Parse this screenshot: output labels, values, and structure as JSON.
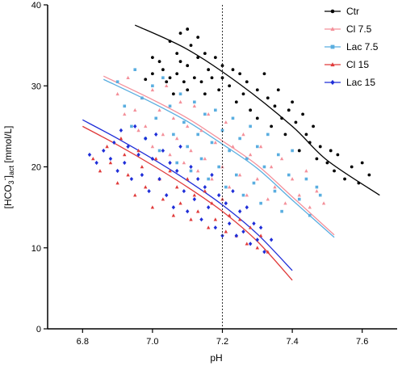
{
  "chart_data": {
    "type": "scatter",
    "xlabel": "pH",
    "ylabel": {
      "prefix": "[HCO",
      "sub1": "3",
      "sup": "-",
      "mid": "]",
      "sub2": "act",
      "suffix": " [mmol/L]"
    },
    "xlim": [
      6.7,
      7.7
    ],
    "ylim": [
      0,
      40
    ],
    "xticks": [
      "6.8",
      "7.0",
      "7.2",
      "7.4",
      "7.6"
    ],
    "yticks": [
      "0",
      "10",
      "20",
      "30",
      "40"
    ],
    "vline_x": 7.2,
    "grid": false,
    "legend_position": "top-right",
    "series": [
      {
        "name": "Ctr",
        "color": "#000000",
        "marker": "circle",
        "fit": {
          "x": [
            6.95,
            7.1,
            7.25,
            7.4,
            7.5,
            7.65
          ],
          "y": [
            37.5,
            34.5,
            30.2,
            25.0,
            20.8,
            16.5
          ]
        },
        "points": [
          [
            6.98,
            30.8
          ],
          [
            7.0,
            33.5
          ],
          [
            7.0,
            31.5
          ],
          [
            7.02,
            33.0
          ],
          [
            7.03,
            32.0
          ],
          [
            7.04,
            30.5
          ],
          [
            7.05,
            35.5
          ],
          [
            7.05,
            31.0
          ],
          [
            7.06,
            29.0
          ],
          [
            7.07,
            34.0
          ],
          [
            7.07,
            31.5
          ],
          [
            7.08,
            36.5
          ],
          [
            7.08,
            33.0
          ],
          [
            7.09,
            30.5
          ],
          [
            7.1,
            37.0
          ],
          [
            7.1,
            32.5
          ],
          [
            7.1,
            29.5
          ],
          [
            7.11,
            35.0
          ],
          [
            7.12,
            31.0
          ],
          [
            7.13,
            36.0
          ],
          [
            7.13,
            33.5
          ],
          [
            7.14,
            30.5
          ],
          [
            7.15,
            34.0
          ],
          [
            7.15,
            29.0
          ],
          [
            7.16,
            32.0
          ],
          [
            7.17,
            31.0
          ],
          [
            7.18,
            33.5
          ],
          [
            7.19,
            29.5
          ],
          [
            7.2,
            32.5
          ],
          [
            7.2,
            31.0
          ],
          [
            7.22,
            30.0
          ],
          [
            7.23,
            32.0
          ],
          [
            7.24,
            28.0
          ],
          [
            7.25,
            31.5
          ],
          [
            7.26,
            29.0
          ],
          [
            7.27,
            30.5
          ],
          [
            7.28,
            27.0
          ],
          [
            7.3,
            29.5
          ],
          [
            7.3,
            26.0
          ],
          [
            7.32,
            31.5
          ],
          [
            7.33,
            28.5
          ],
          [
            7.34,
            25.0
          ],
          [
            7.35,
            27.5
          ],
          [
            7.36,
            29.5
          ],
          [
            7.37,
            26.0
          ],
          [
            7.38,
            24.0
          ],
          [
            7.39,
            27.0
          ],
          [
            7.4,
            28.0
          ],
          [
            7.41,
            25.5
          ],
          [
            7.42,
            22.0
          ],
          [
            7.43,
            26.5
          ],
          [
            7.44,
            24.0
          ],
          [
            7.45,
            23.0
          ],
          [
            7.46,
            25.0
          ],
          [
            7.47,
            21.0
          ],
          [
            7.48,
            22.5
          ],
          [
            7.5,
            20.5
          ],
          [
            7.51,
            22.0
          ],
          [
            7.52,
            19.5
          ],
          [
            7.53,
            21.5
          ],
          [
            7.55,
            18.5
          ],
          [
            7.57,
            20.0
          ],
          [
            7.59,
            18.0
          ],
          [
            7.6,
            20.5
          ],
          [
            7.62,
            19.0
          ]
        ]
      },
      {
        "name": "Cl 7.5",
        "color": "#f4909a",
        "marker": "triangle",
        "fit": {
          "x": [
            6.86,
            7.0,
            7.1,
            7.2,
            7.3,
            7.4,
            7.52
          ],
          "y": [
            31.2,
            28.3,
            26.0,
            23.2,
            20.2,
            16.3,
            11.6
          ]
        },
        "points": [
          [
            6.9,
            29.0
          ],
          [
            6.92,
            26.5
          ],
          [
            6.93,
            31.0
          ],
          [
            6.95,
            27.0
          ],
          [
            6.96,
            24.5
          ],
          [
            6.97,
            28.5
          ],
          [
            6.98,
            25.0
          ],
          [
            7.0,
            29.5
          ],
          [
            7.0,
            22.5
          ],
          [
            7.02,
            27.0
          ],
          [
            7.03,
            24.0
          ],
          [
            7.04,
            30.0
          ],
          [
            7.05,
            21.5
          ],
          [
            7.06,
            26.0
          ],
          [
            7.07,
            23.5
          ],
          [
            7.08,
            28.0
          ],
          [
            7.09,
            20.5
          ],
          [
            7.1,
            25.0
          ],
          [
            7.11,
            22.0
          ],
          [
            7.12,
            27.5
          ],
          [
            7.13,
            19.5
          ],
          [
            7.14,
            24.5
          ],
          [
            7.15,
            21.0
          ],
          [
            7.16,
            26.5
          ],
          [
            7.17,
            18.5
          ],
          [
            7.18,
            23.0
          ],
          [
            7.2,
            20.0
          ],
          [
            7.21,
            25.5
          ],
          [
            7.22,
            17.5
          ],
          [
            7.23,
            22.5
          ],
          [
            7.25,
            19.0
          ],
          [
            7.26,
            24.0
          ],
          [
            7.27,
            16.5
          ],
          [
            7.28,
            21.5
          ],
          [
            7.3,
            18.5
          ],
          [
            7.31,
            22.5
          ],
          [
            7.33,
            16.0
          ],
          [
            7.34,
            20.0
          ],
          [
            7.35,
            17.5
          ],
          [
            7.37,
            21.0
          ],
          [
            7.38,
            15.5
          ],
          [
            7.4,
            18.5
          ],
          [
            7.42,
            16.5
          ],
          [
            7.44,
            19.5
          ],
          [
            7.45,
            15.0
          ],
          [
            7.47,
            17.0
          ],
          [
            7.49,
            15.5
          ]
        ]
      },
      {
        "name": "Lac 7.5",
        "color": "#5aaee0",
        "marker": "square",
        "fit": {
          "x": [
            6.86,
            7.0,
            7.1,
            7.2,
            7.3,
            7.4,
            7.52
          ],
          "y": [
            30.8,
            27.9,
            25.6,
            22.8,
            19.8,
            15.9,
            11.3
          ]
        },
        "points": [
          [
            6.9,
            30.5
          ],
          [
            6.92,
            27.5
          ],
          [
            6.94,
            25.0
          ],
          [
            6.95,
            32.0
          ],
          [
            6.97,
            28.5
          ],
          [
            6.98,
            23.5
          ],
          [
            7.0,
            30.0
          ],
          [
            7.01,
            26.0
          ],
          [
            7.02,
            22.0
          ],
          [
            7.03,
            31.0
          ],
          [
            7.05,
            27.5
          ],
          [
            7.06,
            24.0
          ],
          [
            7.07,
            20.5
          ],
          [
            7.08,
            29.0
          ],
          [
            7.09,
            25.5
          ],
          [
            7.1,
            22.5
          ],
          [
            7.11,
            19.5
          ],
          [
            7.12,
            28.0
          ],
          [
            7.13,
            24.0
          ],
          [
            7.14,
            21.0
          ],
          [
            7.15,
            26.5
          ],
          [
            7.16,
            18.5
          ],
          [
            7.17,
            23.0
          ],
          [
            7.18,
            27.0
          ],
          [
            7.19,
            20.0
          ],
          [
            7.2,
            24.5
          ],
          [
            7.21,
            17.5
          ],
          [
            7.22,
            22.0
          ],
          [
            7.23,
            26.0
          ],
          [
            7.24,
            19.0
          ],
          [
            7.25,
            23.5
          ],
          [
            7.26,
            16.5
          ],
          [
            7.27,
            21.0
          ],
          [
            7.28,
            25.0
          ],
          [
            7.29,
            18.0
          ],
          [
            7.3,
            22.5
          ],
          [
            7.31,
            15.5
          ],
          [
            7.32,
            20.0
          ],
          [
            7.33,
            24.0
          ],
          [
            7.35,
            17.0
          ],
          [
            7.36,
            21.5
          ],
          [
            7.37,
            14.5
          ],
          [
            7.39,
            19.0
          ],
          [
            7.4,
            22.0
          ],
          [
            7.42,
            16.0
          ],
          [
            7.44,
            18.5
          ],
          [
            7.45,
            14.0
          ],
          [
            7.47,
            17.5
          ],
          [
            7.48,
            16.5
          ]
        ]
      },
      {
        "name": "Cl  15",
        "color": "#e03a3a",
        "marker": "triangle",
        "fit": {
          "x": [
            6.8,
            6.9,
            7.0,
            7.1,
            7.2,
            7.3,
            7.4
          ],
          "y": [
            25.0,
            22.7,
            20.2,
            17.5,
            14.5,
            10.8,
            6.0
          ]
        },
        "points": [
          [
            6.83,
            21.0
          ],
          [
            6.85,
            19.5
          ],
          [
            6.87,
            22.5
          ],
          [
            6.88,
            20.5
          ],
          [
            6.9,
            18.0
          ],
          [
            6.91,
            23.5
          ],
          [
            6.92,
            21.5
          ],
          [
            6.93,
            19.0
          ],
          [
            6.95,
            16.5
          ],
          [
            6.96,
            22.0
          ],
          [
            6.97,
            20.0
          ],
          [
            6.98,
            17.5
          ],
          [
            7.0,
            15.0
          ],
          [
            7.01,
            21.0
          ],
          [
            7.02,
            18.5
          ],
          [
            7.03,
            16.0
          ],
          [
            7.05,
            19.5
          ],
          [
            7.06,
            14.0
          ],
          [
            7.07,
            17.5
          ],
          [
            7.08,
            15.5
          ],
          [
            7.1,
            18.5
          ],
          [
            7.11,
            13.5
          ],
          [
            7.12,
            16.5
          ],
          [
            7.13,
            14.5
          ],
          [
            7.15,
            17.0
          ],
          [
            7.16,
            12.5
          ],
          [
            7.17,
            15.5
          ],
          [
            7.18,
            13.5
          ],
          [
            7.2,
            16.0
          ],
          [
            7.21,
            12.0
          ],
          [
            7.22,
            14.0
          ],
          [
            7.24,
            11.5
          ],
          [
            7.25,
            13.5
          ],
          [
            7.27,
            10.5
          ],
          [
            7.28,
            12.5
          ],
          [
            7.3,
            10.0
          ],
          [
            7.31,
            11.5
          ],
          [
            7.33,
            9.5
          ]
        ]
      },
      {
        "name": "Lac 15",
        "color": "#1f2ed8",
        "marker": "diamond",
        "fit": {
          "x": [
            6.8,
            6.9,
            7.0,
            7.1,
            7.2,
            7.3,
            7.4
          ],
          "y": [
            25.8,
            23.5,
            21.0,
            18.3,
            15.3,
            11.7,
            7.2
          ]
        },
        "points": [
          [
            6.82,
            21.5
          ],
          [
            6.84,
            20.5
          ],
          [
            6.86,
            22.0
          ],
          [
            6.88,
            21.0
          ],
          [
            6.89,
            23.0
          ],
          [
            6.9,
            19.5
          ],
          [
            6.91,
            24.5
          ],
          [
            6.92,
            20.5
          ],
          [
            6.93,
            22.5
          ],
          [
            6.94,
            18.5
          ],
          [
            6.95,
            25.0
          ],
          [
            6.96,
            21.5
          ],
          [
            6.97,
            19.0
          ],
          [
            6.98,
            23.5
          ],
          [
            6.99,
            17.0
          ],
          [
            7.0,
            21.0
          ],
          [
            7.01,
            24.0
          ],
          [
            7.02,
            18.5
          ],
          [
            7.03,
            22.0
          ],
          [
            7.04,
            16.5
          ],
          [
            7.05,
            20.5
          ],
          [
            7.06,
            15.0
          ],
          [
            7.07,
            19.5
          ],
          [
            7.08,
            22.5
          ],
          [
            7.09,
            17.0
          ],
          [
            7.1,
            14.5
          ],
          [
            7.11,
            20.0
          ],
          [
            7.12,
            16.0
          ],
          [
            7.13,
            18.5
          ],
          [
            7.14,
            13.5
          ],
          [
            7.15,
            17.5
          ],
          [
            7.16,
            15.0
          ],
          [
            7.17,
            19.0
          ],
          [
            7.18,
            12.5
          ],
          [
            7.19,
            16.5
          ],
          [
            7.2,
            11.5
          ],
          [
            7.21,
            15.5
          ],
          [
            7.22,
            13.0
          ],
          [
            7.23,
            17.0
          ],
          [
            7.24,
            11.5
          ],
          [
            7.25,
            14.5
          ],
          [
            7.26,
            12.0
          ],
          [
            7.27,
            15.0
          ],
          [
            7.28,
            10.5
          ],
          [
            7.29,
            13.0
          ],
          [
            7.3,
            11.0
          ],
          [
            7.31,
            12.5
          ],
          [
            7.32,
            9.5
          ],
          [
            7.34,
            11.0
          ]
        ]
      }
    ]
  }
}
